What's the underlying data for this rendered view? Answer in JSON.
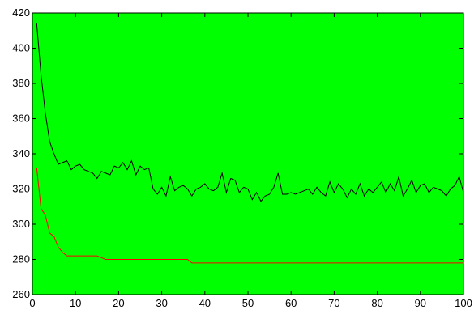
{
  "chart_data": {
    "type": "line",
    "title": "",
    "xlabel": "",
    "ylabel": "",
    "xlim": [
      0,
      100
    ],
    "ylim": [
      260,
      420
    ],
    "x_ticks": [
      0,
      10,
      20,
      30,
      40,
      50,
      60,
      70,
      80,
      90,
      100
    ],
    "y_ticks": [
      260,
      280,
      300,
      320,
      340,
      360,
      380,
      400,
      420
    ],
    "grid": false,
    "legend": "none",
    "background_color": "#00ff00",
    "series": [
      {
        "color": "#000000",
        "x": [
          1,
          2,
          3,
          4,
          5,
          6,
          7,
          8,
          9,
          10,
          11,
          12,
          13,
          14,
          15,
          16,
          17,
          18,
          19,
          20,
          21,
          22,
          23,
          24,
          25,
          26,
          27,
          28,
          29,
          30,
          31,
          32,
          33,
          34,
          35,
          36,
          37,
          38,
          39,
          40,
          41,
          42,
          43,
          44,
          45,
          46,
          47,
          48,
          49,
          50,
          51,
          52,
          53,
          54,
          55,
          56,
          57,
          58,
          59,
          60,
          61,
          62,
          63,
          64,
          65,
          66,
          67,
          68,
          69,
          70,
          71,
          72,
          73,
          74,
          75,
          76,
          77,
          78,
          79,
          80,
          81,
          82,
          83,
          84,
          85,
          86,
          87,
          88,
          89,
          90,
          91,
          92,
          93,
          94,
          95,
          96,
          97,
          98,
          99,
          100
        ],
        "y": [
          414,
          385,
          363,
          347,
          340,
          334,
          335,
          336,
          331,
          333,
          334,
          331,
          330,
          329,
          326,
          330,
          329,
          328,
          333,
          332,
          335,
          331,
          336,
          328,
          333,
          331,
          332,
          320,
          317,
          321,
          316,
          327,
          319,
          321,
          322,
          320,
          316,
          320,
          321,
          323,
          320,
          319,
          321,
          329,
          318,
          326,
          325,
          318,
          321,
          320,
          314,
          318,
          313,
          316,
          317,
          321,
          329,
          317,
          317,
          318,
          317,
          318,
          319,
          320,
          317,
          321,
          318,
          316,
          324,
          318,
          323,
          320,
          315,
          320,
          317,
          323,
          316,
          320,
          318,
          321,
          324,
          318,
          323,
          319,
          327,
          316,
          320,
          325,
          318,
          322,
          323,
          318,
          321,
          320,
          319,
          316,
          320,
          322,
          327,
          318
        ]
      },
      {
        "color": "#ff0000",
        "x": [
          1,
          2,
          3,
          4,
          5,
          6,
          7,
          8,
          9,
          10,
          15,
          16,
          17,
          18,
          36,
          37,
          100
        ],
        "y": [
          332,
          309,
          305,
          295,
          293,
          287,
          284,
          282,
          282,
          282,
          282,
          281,
          280,
          280,
          280,
          278,
          278
        ]
      }
    ]
  }
}
